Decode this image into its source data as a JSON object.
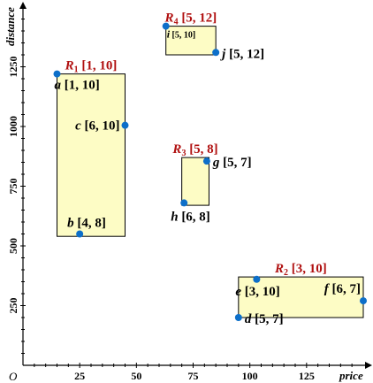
{
  "chart_data": {
    "type": "scatter",
    "xlabel": "price",
    "ylabel": "distance",
    "origin_label": "O",
    "x_ticks": [
      "25",
      "50",
      "75",
      "100",
      "125"
    ],
    "x_tick_values": [
      25,
      50,
      75,
      100,
      125
    ],
    "y_ticks": [
      "250",
      "500",
      "750",
      "1000",
      "1250"
    ],
    "y_tick_values": [
      250,
      500,
      750,
      1000,
      1250
    ],
    "xlim": [
      0,
      150
    ],
    "ylim": [
      0,
      1500
    ],
    "regions": [
      {
        "id": "R1",
        "letter": "R",
        "sub": "1",
        "range": "[1, 10]",
        "x0": 15,
        "x1": 45,
        "y0": 540,
        "y1": 1220,
        "label_side": "top"
      },
      {
        "id": "R2",
        "letter": "R",
        "sub": "2",
        "range": "[3, 10]",
        "x0": 95,
        "x1": 150,
        "y0": 200,
        "y1": 370,
        "label_side": "top"
      },
      {
        "id": "R3",
        "letter": "R",
        "sub": "3",
        "range": "[5, 8]",
        "x0": 70,
        "x1": 82,
        "y0": 670,
        "y1": 870,
        "label_side": "top"
      },
      {
        "id": "R4",
        "letter": "R",
        "sub": "4",
        "range": "[5, 12]",
        "x0": 63,
        "x1": 85,
        "y0": 1300,
        "y1": 1420,
        "label_side": "top"
      }
    ],
    "points": [
      {
        "name": "a",
        "range": "[1, 10]",
        "x": 15,
        "y": 1220,
        "label_pos": "below-right",
        "small": false
      },
      {
        "name": "b",
        "range": "[4, 8]",
        "x": 25,
        "y": 550,
        "label_pos": "above-left",
        "small": false
      },
      {
        "name": "c",
        "range": "[6, 10]",
        "x": 45,
        "y": 1005,
        "label_pos": "left",
        "small": false
      },
      {
        "name": "d",
        "range": "[5, 7]",
        "x": 95,
        "y": 200,
        "label_pos": "right",
        "small": false
      },
      {
        "name": "e",
        "range": "[3, 10]",
        "x": 103,
        "y": 360,
        "label_pos": "below",
        "small": false
      },
      {
        "name": "f",
        "range": "[6, 7]",
        "x": 150,
        "y": 270,
        "label_pos": "upper-left",
        "small": false
      },
      {
        "name": "g",
        "range": "[5, 7]",
        "x": 81,
        "y": 855,
        "label_pos": "right",
        "small": false
      },
      {
        "name": "h",
        "range": "[6, 8]",
        "x": 71,
        "y": 680,
        "label_pos": "below-left",
        "small": false
      },
      {
        "name": "i",
        "range": "[5, 10]",
        "x": 63,
        "y": 1420,
        "label_pos": "below-right",
        "small": true
      },
      {
        "name": "j",
        "range": "[5, 12]",
        "x": 85,
        "y": 1310,
        "label_pos": "right",
        "small": false
      }
    ]
  }
}
